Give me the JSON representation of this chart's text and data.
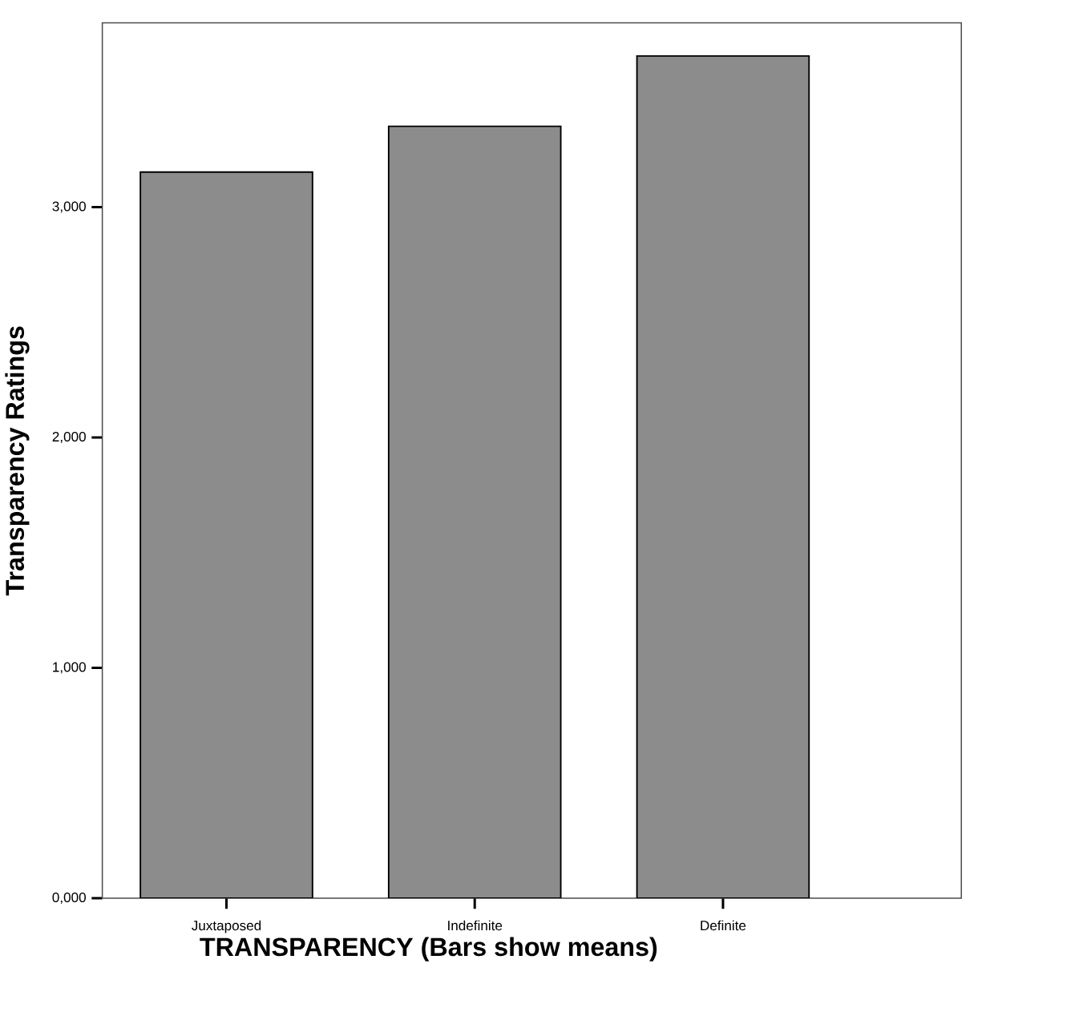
{
  "chart_data": {
    "type": "bar",
    "xlabel": "TRANSPARENCY (Bars show means)",
    "ylabel": "Transparency Ratings",
    "categories": [
      "Juxtaposed",
      "Indefinite",
      "Definite"
    ],
    "values": [
      3152,
      3351,
      3656
    ],
    "color": "#8c8c8c",
    "ylim": [
      0,
      3800
    ],
    "yticks": [
      {
        "value": 0,
        "label": "0,000"
      },
      {
        "value": 1000,
        "label": "1,000"
      },
      {
        "value": 2000,
        "label": "2,000"
      },
      {
        "value": 3000,
        "label": "3,000"
      }
    ]
  }
}
